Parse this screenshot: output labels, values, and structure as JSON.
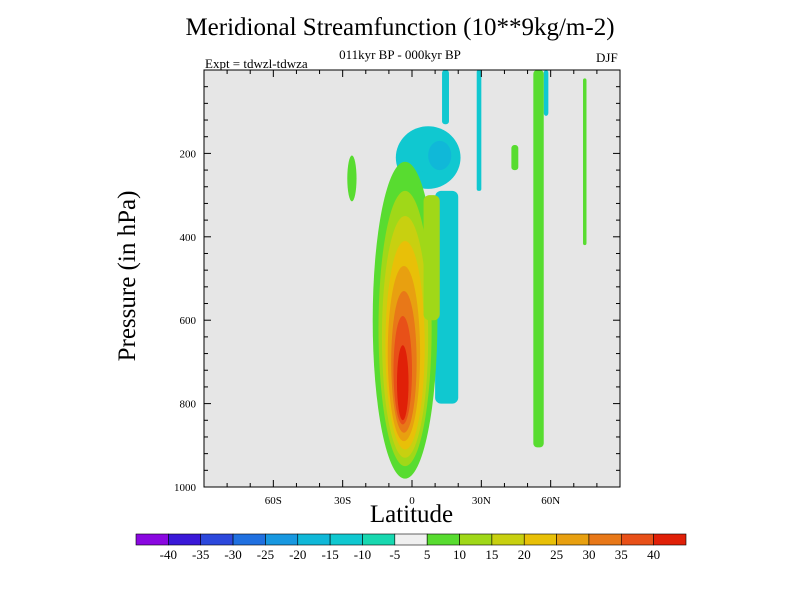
{
  "chart_data": {
    "type": "contour",
    "title": "Meridional Streamfunction (10**9kg/m-2)",
    "subtitle": "011kyr BP - 000kyr BP",
    "experiment_label": "Expt = tdwzl-tdwza",
    "season": "DJF",
    "xlabel": "Latitude",
    "ylabel": "Pressure (in hPa)",
    "xlim": [
      -90,
      90
    ],
    "ylim": [
      1000,
      0
    ],
    "x_ticks": [
      {
        "value": -60,
        "label": "60S"
      },
      {
        "value": -30,
        "label": "30S"
      },
      {
        "value": 0,
        "label": "0"
      },
      {
        "value": 30,
        "label": "30N"
      },
      {
        "value": 60,
        "label": "60N"
      }
    ],
    "y_ticks": [
      {
        "value": 200,
        "label": "200"
      },
      {
        "value": 400,
        "label": "400"
      },
      {
        "value": 600,
        "label": "600"
      },
      {
        "value": 800,
        "label": "800"
      },
      {
        "value": 1000,
        "label": "1000"
      }
    ],
    "plot_background": "#e6e6e6",
    "colorbar": {
      "labels": [
        "-40",
        "-35",
        "-30",
        "-25",
        "-20",
        "-15",
        "-10",
        "-5",
        "5",
        "10",
        "15",
        "20",
        "25",
        "30",
        "35",
        "40"
      ],
      "colors": [
        "#8a08e0",
        "#3a18d8",
        "#2c48dc",
        "#2070e0",
        "#1898e0",
        "#10b8d8",
        "#10c8d0",
        "#18d8b0",
        "#f0f0f0",
        "#58dc30",
        "#a0d818",
        "#c8d010",
        "#e8c008",
        "#e8a010",
        "#e87818",
        "#e85018",
        "#e02008"
      ]
    },
    "features": [
      {
        "name": "main-positive-cell",
        "lat_range": [
          -17,
          10
        ],
        "pressure_range": [
          220,
          980
        ],
        "max_level": 40,
        "max_at": {
          "lat": -3,
          "pressure": 750
        }
      },
      {
        "name": "upper-negative-cell",
        "lat_range": [
          -6,
          20
        ],
        "pressure_range": [
          150,
          320
        ],
        "min_level": -15
      },
      {
        "name": "nh-positive-band",
        "lat_range": [
          52,
          58
        ],
        "pressure_range": [
          0,
          910
        ],
        "level": 5
      },
      {
        "name": "nh-high-lat-positive",
        "lat_range": [
          74,
          76
        ],
        "pressure_range": [
          20,
          420
        ],
        "level": 5
      }
    ]
  }
}
